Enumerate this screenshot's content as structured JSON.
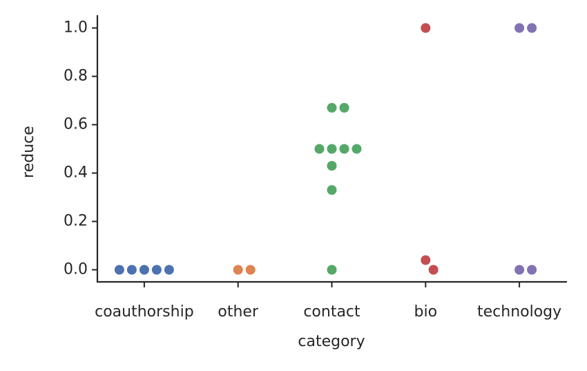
{
  "chart_data": {
    "type": "swarm",
    "x_label": "category",
    "y_label": "reduce",
    "categories": [
      "coauthorship",
      "other",
      "contact",
      "bio",
      "technology"
    ],
    "values": [
      [
        0,
        0,
        0,
        0,
        0
      ],
      [
        0,
        0
      ],
      [
        0.67,
        0.67,
        0.5,
        0.5,
        0.5,
        0.5,
        0.43,
        0.33,
        0
      ],
      [
        1,
        0.04,
        0
      ],
      [
        1,
        1,
        0,
        0
      ]
    ],
    "colors": [
      "#4c72b0",
      "#dd8452",
      "#55a868",
      "#c44e52",
      "#8172b3"
    ],
    "ylim": [
      -0.05,
      1.05
    ],
    "yticks": [
      {
        "value": 0,
        "label": "0.0"
      },
      {
        "value": 0.2,
        "label": "0.2"
      },
      {
        "value": 0.4,
        "label": "0.4"
      },
      {
        "value": 0.6,
        "label": "0.6"
      },
      {
        "value": 0.8,
        "label": "0.8"
      },
      {
        "value": 1,
        "label": "1.0"
      }
    ]
  }
}
